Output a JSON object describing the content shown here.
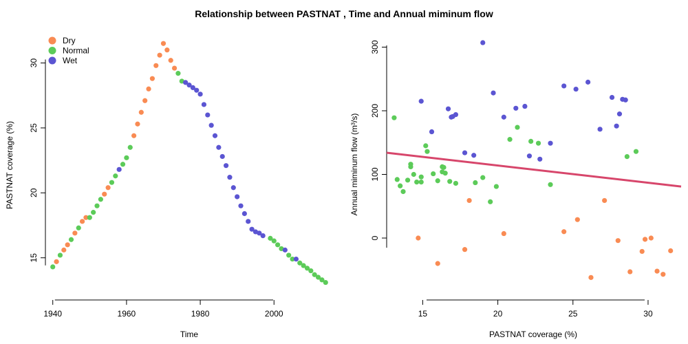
{
  "figure": {
    "title": "Relationship between PASTNAT , Time and Annual miminum flow"
  },
  "colors": {
    "Dry": "#F98B53",
    "Normal": "#5CCB59",
    "Wet": "#5B55D2",
    "regression": "#D7466B"
  },
  "chart_data": [
    {
      "type": "scatter",
      "panel": "left",
      "title": "",
      "xlabel": "Time",
      "ylabel": "PASTNAT coverage (%)",
      "xlim": [
        1938,
        2016
      ],
      "ylim": [
        12.6,
        32.2
      ],
      "xticks": [
        1940,
        1960,
        1980,
        2000
      ],
      "yticks": [
        15,
        20,
        25,
        30
      ],
      "legend": {
        "position": "top-left",
        "entries": [
          "Dry",
          "Normal",
          "Wet"
        ]
      },
      "series": [
        {
          "name": "Dry",
          "points": [
            [
              1941,
              14.7
            ],
            [
              1943,
              15.6
            ],
            [
              1944,
              16.0
            ],
            [
              1946,
              16.9
            ],
            [
              1948,
              17.8
            ],
            [
              1949,
              18.1
            ],
            [
              1954,
              19.9
            ],
            [
              1955,
              20.4
            ],
            [
              1962,
              24.4
            ],
            [
              1963,
              25.3
            ],
            [
              1964,
              26.2
            ],
            [
              1965,
              27.1
            ],
            [
              1966,
              28.0
            ],
            [
              1967,
              28.8
            ],
            [
              1968,
              29.8
            ],
            [
              1969,
              30.6
            ],
            [
              1970,
              31.5
            ],
            [
              1971,
              31.0
            ],
            [
              1972,
              30.2
            ],
            [
              1973,
              29.6
            ]
          ]
        },
        {
          "name": "Normal",
          "points": [
            [
              1940,
              14.3
            ],
            [
              1942,
              15.2
            ],
            [
              1945,
              16.4
            ],
            [
              1947,
              17.3
            ],
            [
              1950,
              18.1
            ],
            [
              1951,
              18.5
            ],
            [
              1952,
              19.0
            ],
            [
              1953,
              19.5
            ],
            [
              1956,
              20.8
            ],
            [
              1957,
              21.3
            ],
            [
              1959,
              22.2
            ],
            [
              1960,
              22.7
            ],
            [
              1961,
              23.5
            ],
            [
              1974,
              29.2
            ],
            [
              1975,
              28.6
            ],
            [
              1999,
              16.5
            ],
            [
              2000,
              16.3
            ],
            [
              2001,
              16.0
            ],
            [
              2002,
              15.7
            ],
            [
              2004,
              15.2
            ],
            [
              2005,
              14.9
            ],
            [
              2007,
              14.6
            ],
            [
              2008,
              14.4
            ],
            [
              2009,
              14.2
            ],
            [
              2010,
              14.0
            ],
            [
              2011,
              13.7
            ],
            [
              2012,
              13.5
            ],
            [
              2013,
              13.3
            ],
            [
              2014,
              13.1
            ]
          ]
        },
        {
          "name": "Wet",
          "points": [
            [
              1958,
              21.8
            ],
            [
              1976,
              28.5
            ],
            [
              1977,
              28.3
            ],
            [
              1978,
              28.1
            ],
            [
              1979,
              27.9
            ],
            [
              1980,
              27.6
            ],
            [
              1981,
              26.8
            ],
            [
              1982,
              26.0
            ],
            [
              1983,
              25.2
            ],
            [
              1984,
              24.4
            ],
            [
              1985,
              23.5
            ],
            [
              1986,
              22.8
            ],
            [
              1987,
              22.1
            ],
            [
              1988,
              21.2
            ],
            [
              1989,
              20.4
            ],
            [
              1990,
              19.7
            ],
            [
              1991,
              19.0
            ],
            [
              1992,
              18.4
            ],
            [
              1993,
              17.8
            ],
            [
              1994,
              17.2
            ],
            [
              1995,
              17.0
            ],
            [
              1996,
              16.9
            ],
            [
              1997,
              16.7
            ],
            [
              2003,
              15.6
            ],
            [
              2006,
              14.9
            ]
          ]
        }
      ]
    },
    {
      "type": "scatter",
      "panel": "right",
      "title": "",
      "xlabel": "PASTNAT coverage (%)",
      "ylabel": "Annual miminum flow (m³/s)",
      "xlim": [
        12.6,
        32.2
      ],
      "ylim": [
        -80,
        320
      ],
      "xticks": [
        15,
        20,
        25,
        30
      ],
      "yticks": [
        0,
        100,
        200,
        300
      ],
      "regression_line": [
        [
          12.6,
          134
        ],
        [
          32.2,
          81
        ]
      ],
      "series": [
        {
          "name": "Dry",
          "points": [
            [
              14.7,
              0
            ],
            [
              16.0,
              -40
            ],
            [
              17.8,
              -18
            ],
            [
              18.1,
              59
            ],
            [
              20.4,
              7
            ],
            [
              24.4,
              10
            ],
            [
              25.3,
              29
            ],
            [
              26.2,
              -62
            ],
            [
              27.1,
              59
            ],
            [
              28.0,
              -4
            ],
            [
              28.8,
              -53
            ],
            [
              29.6,
              -21
            ],
            [
              29.8,
              -2
            ],
            [
              30.2,
              0
            ],
            [
              30.6,
              -52
            ],
            [
              31.0,
              -57
            ],
            [
              31.5,
              -20
            ]
          ]
        },
        {
          "name": "Normal",
          "points": [
            [
              13.1,
              189
            ],
            [
              13.3,
              92
            ],
            [
              13.5,
              82
            ],
            [
              13.7,
              73
            ],
            [
              14.0,
              91
            ],
            [
              14.2,
              116
            ],
            [
              14.2,
              112
            ],
            [
              14.4,
              100
            ],
            [
              14.6,
              88
            ],
            [
              14.9,
              96
            ],
            [
              14.9,
              88
            ],
            [
              15.2,
              145
            ],
            [
              15.3,
              136
            ],
            [
              15.7,
              101
            ],
            [
              16.0,
              90
            ],
            [
              16.3,
              112
            ],
            [
              16.3,
              104
            ],
            [
              16.4,
              111
            ],
            [
              16.5,
              102
            ],
            [
              16.8,
              89
            ],
            [
              17.2,
              86
            ],
            [
              18.5,
              87
            ],
            [
              19.0,
              95
            ],
            [
              19.5,
              57
            ],
            [
              19.9,
              81
            ],
            [
              20.8,
              155
            ],
            [
              21.3,
              174
            ],
            [
              22.2,
              152
            ],
            [
              22.7,
              149
            ],
            [
              23.5,
              84
            ],
            [
              29.2,
              136
            ],
            [
              28.6,
              128
            ]
          ]
        },
        {
          "name": "Wet",
          "points": [
            [
              14.9,
              215
            ],
            [
              15.6,
              167
            ],
            [
              16.7,
              203
            ],
            [
              16.9,
              190
            ],
            [
              17.0,
              191
            ],
            [
              17.2,
              194
            ],
            [
              17.8,
              134
            ],
            [
              18.4,
              130
            ],
            [
              19.0,
              307
            ],
            [
              19.7,
              228
            ],
            [
              20.4,
              190
            ],
            [
              21.2,
              204
            ],
            [
              21.8,
              207
            ],
            [
              22.1,
              129
            ],
            [
              22.8,
              124
            ],
            [
              23.5,
              149
            ],
            [
              24.4,
              239
            ],
            [
              25.2,
              234
            ],
            [
              26.0,
              245
            ],
            [
              26.8,
              171
            ],
            [
              27.6,
              221
            ],
            [
              27.9,
              176
            ],
            [
              28.1,
              195
            ],
            [
              28.3,
              218
            ],
            [
              28.5,
              217
            ]
          ]
        }
      ]
    }
  ]
}
